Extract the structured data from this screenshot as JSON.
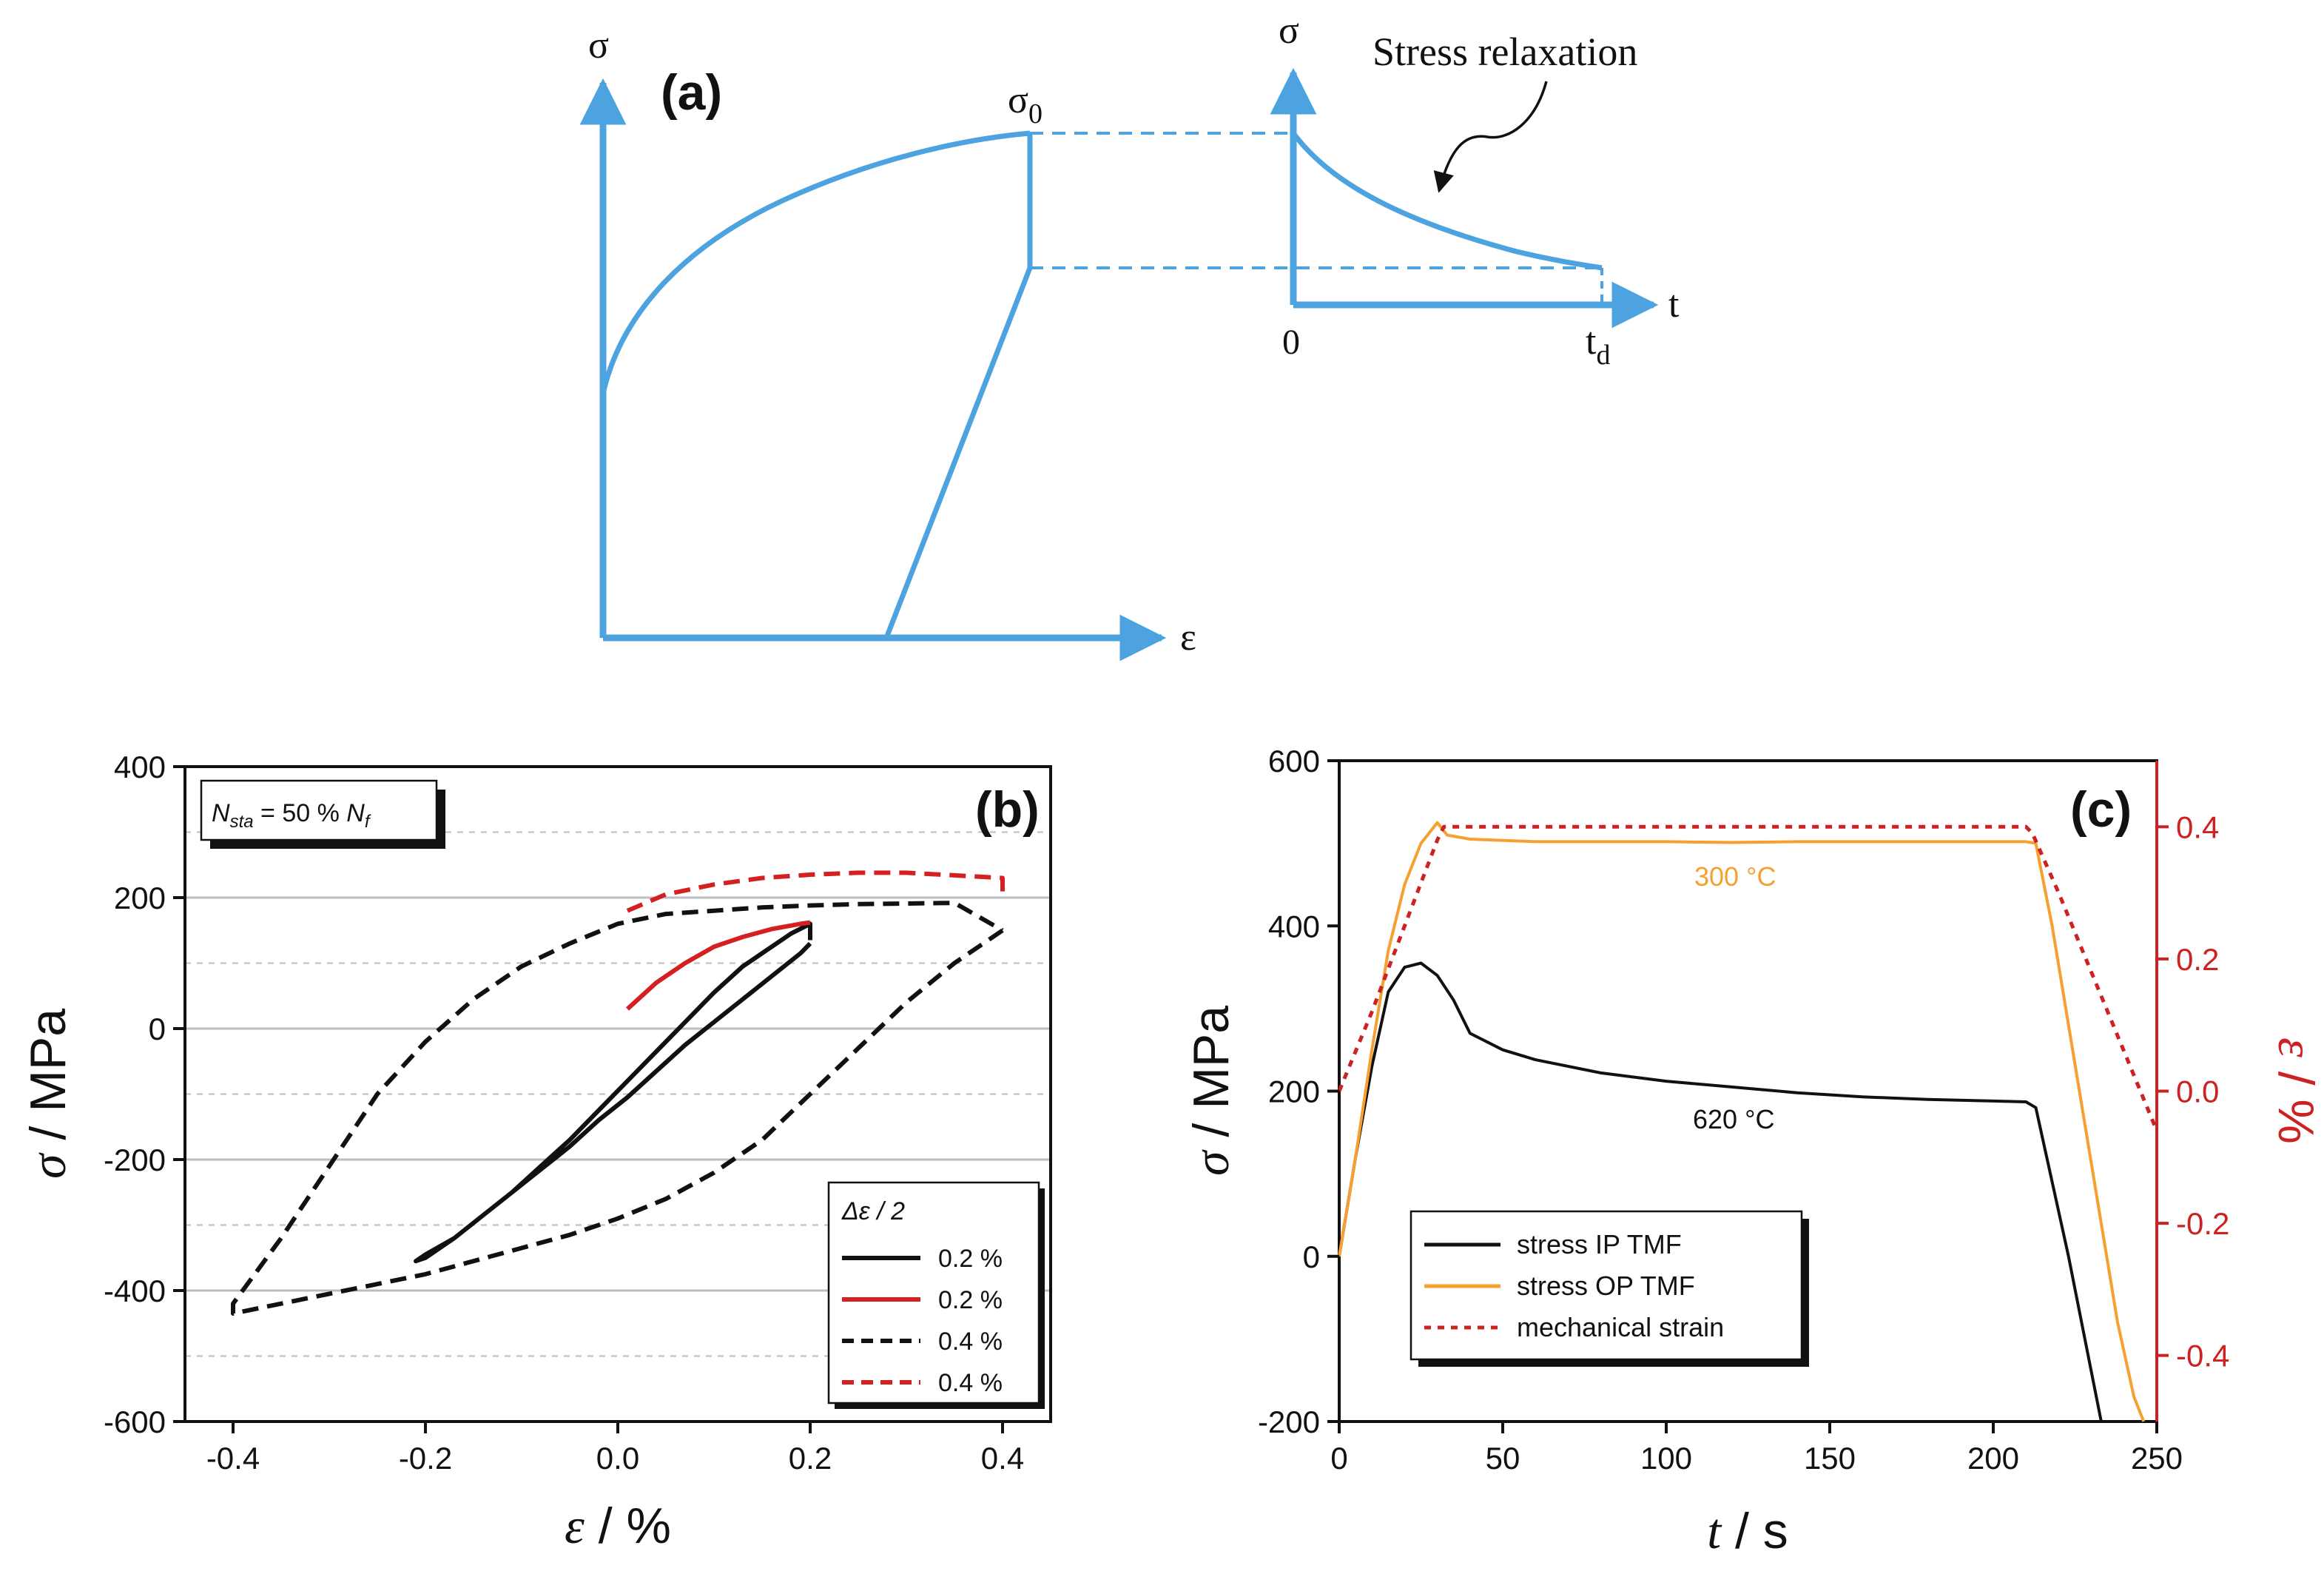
{
  "colors": {
    "schematic_blue": "#4da3e0",
    "black": "#111111",
    "red": "#d42020",
    "orange": "#f5a030",
    "grid": "#bdbdbd",
    "strain_axis_red": "#cc2222"
  },
  "panel_a": {
    "label": "(a)",
    "left_y_axis": "σ",
    "x_axis": "ε",
    "sigma0_base": "σ",
    "sigma0_sub": "0",
    "right_y_axis": "σ",
    "right_x_axis": "t",
    "origin": "0",
    "td_base": "t",
    "td_sub": "d",
    "annotation": "Stress relaxation"
  },
  "chart_data": [
    {
      "id": "b",
      "type": "line",
      "panel_label": "(b)",
      "ylabel": "σ / MPa",
      "xlabel": "ε / %",
      "xlim": [
        -0.45,
        0.45
      ],
      "ylim": [
        -600,
        400
      ],
      "xticks": [
        -0.4,
        -0.2,
        0.0,
        0.2,
        0.4
      ],
      "xtick_labels": [
        "-0.4",
        "-0.2",
        "0.0",
        "0.2",
        "0.4"
      ],
      "yticks": [
        -600,
        -400,
        -200,
        0,
        200,
        400
      ],
      "ytick_labels": [
        "-600",
        "-400",
        "-200",
        "0",
        "200",
        "400"
      ],
      "grid": "horizontal",
      "note": {
        "sym": "N",
        "sub": "sta",
        "mid": " = 50 % ",
        "sym2": "N",
        "sub2": "f"
      },
      "legend": {
        "title": "Δε / 2",
        "position": "bottom-right"
      },
      "series": [
        {
          "name": "0.2 %",
          "color": "#111111",
          "dash": "solid",
          "x": [
            0.2,
            0.19,
            0.16,
            0.13,
            0.1,
            0.07,
            0.04,
            0.01,
            -0.02,
            -0.05,
            -0.08,
            -0.11,
            -0.14,
            -0.17,
            -0.2,
            -0.21,
            -0.2,
            -0.17,
            -0.14,
            -0.11,
            -0.08,
            -0.05,
            -0.02,
            0.01,
            0.04,
            0.07,
            0.1,
            0.13,
            0.16,
            0.18,
            0.2,
            0.2
          ],
          "y": [
            130,
            115,
            80,
            45,
            10,
            -25,
            -65,
            -105,
            -140,
            -180,
            -215,
            -250,
            -285,
            -320,
            -345,
            -355,
            -350,
            -320,
            -285,
            -250,
            -210,
            -170,
            -125,
            -80,
            -35,
            10,
            55,
            95,
            125,
            145,
            160,
            135
          ]
        },
        {
          "name": "0.2 %",
          "color": "#d42020",
          "dash": "solid",
          "x": [
            0.01,
            0.04,
            0.07,
            0.1,
            0.13,
            0.16,
            0.19,
            0.2
          ],
          "y": [
            30,
            70,
            100,
            125,
            140,
            152,
            160,
            162
          ]
        },
        {
          "name": "0.4 %",
          "color": "#111111",
          "dash": "dashed",
          "x": [
            0.4,
            0.35,
            0.3,
            0.25,
            0.2,
            0.15,
            0.1,
            0.05,
            0.0,
            -0.05,
            -0.1,
            -0.15,
            -0.2,
            -0.25,
            -0.3,
            -0.35,
            -0.4,
            -0.4,
            -0.35,
            -0.3,
            -0.25,
            -0.2,
            -0.15,
            -0.1,
            -0.05,
            0.0,
            0.05,
            0.1,
            0.15,
            0.2,
            0.25,
            0.3,
            0.35,
            0.4
          ],
          "y": [
            150,
            100,
            40,
            -30,
            -100,
            -170,
            -220,
            -260,
            -290,
            -315,
            -335,
            -355,
            -375,
            -390,
            -405,
            -420,
            -435,
            -420,
            -320,
            -210,
            -100,
            -20,
            45,
            95,
            130,
            160,
            175,
            180,
            185,
            188,
            190,
            191,
            192,
            150
          ]
        },
        {
          "name": "0.4 %",
          "color": "#d42020",
          "dash": "dashed",
          "x": [
            0.01,
            0.05,
            0.1,
            0.15,
            0.2,
            0.25,
            0.3,
            0.35,
            0.4,
            0.4
          ],
          "y": [
            180,
            205,
            220,
            230,
            235,
            238,
            238,
            234,
            230,
            200
          ]
        }
      ]
    },
    {
      "id": "c",
      "type": "line",
      "panel_label": "(c)",
      "ylabel": "σ / MPa",
      "y2label": "ε / %",
      "xlabel": "t / s",
      "xlim": [
        0,
        250
      ],
      "ylim": [
        -200,
        600
      ],
      "y2lim": [
        -0.5,
        0.5
      ],
      "xticks": [
        0,
        50,
        100,
        150,
        200,
        250
      ],
      "xtick_labels": [
        "0",
        "50",
        "100",
        "150",
        "200",
        "250"
      ],
      "yticks": [
        -200,
        0,
        200,
        400,
        600
      ],
      "ytick_labels": [
        "-200",
        "0",
        "200",
        "400",
        "600"
      ],
      "y2ticks": [
        -0.4,
        -0.2,
        0.0,
        0.2,
        0.4
      ],
      "y2tick_labels": [
        "-0.4",
        "-0.2",
        "0.0",
        "0.2",
        "0.4"
      ],
      "grid": "none",
      "annotations": [
        "300 °C",
        "620 °C"
      ],
      "legend": {
        "position": "bottom-left"
      },
      "series": [
        {
          "name": "stress IP TMF",
          "axis": "left",
          "color": "#111111",
          "dash": "solid",
          "x": [
            0,
            5,
            10,
            15,
            20,
            25,
            30,
            35,
            40,
            50,
            60,
            80,
            100,
            120,
            140,
            160,
            180,
            200,
            210,
            213,
            218,
            223,
            228,
            233
          ],
          "y": [
            0,
            120,
            230,
            320,
            350,
            355,
            340,
            310,
            270,
            250,
            238,
            222,
            212,
            205,
            198,
            193,
            190,
            188,
            187,
            180,
            90,
            0,
            -100,
            -200
          ]
        },
        {
          "name": "stress OP TMF",
          "axis": "left",
          "color": "#f5a030",
          "dash": "solid",
          "x": [
            0,
            5,
            10,
            15,
            20,
            25,
            30,
            33,
            40,
            60,
            80,
            100,
            120,
            140,
            160,
            180,
            200,
            210,
            213,
            218,
            223,
            228,
            233,
            238,
            243,
            246
          ],
          "y": [
            0,
            120,
            250,
            370,
            450,
            500,
            525,
            510,
            505,
            502,
            502,
            502,
            501,
            502,
            502,
            502,
            502,
            502,
            500,
            400,
            280,
            160,
            40,
            -80,
            -170,
            -200
          ]
        },
        {
          "name": "mechanical strain",
          "axis": "right",
          "color": "#cc2222",
          "dash": "dotted",
          "x": [
            0,
            10,
            20,
            30,
            32,
            60,
            100,
            150,
            200,
            210,
            212,
            220,
            230,
            240,
            250
          ],
          "y": [
            0.0,
            0.12,
            0.25,
            0.38,
            0.4,
            0.4,
            0.4,
            0.4,
            0.4,
            0.4,
            0.39,
            0.3,
            0.18,
            0.06,
            -0.06
          ]
        }
      ]
    }
  ]
}
